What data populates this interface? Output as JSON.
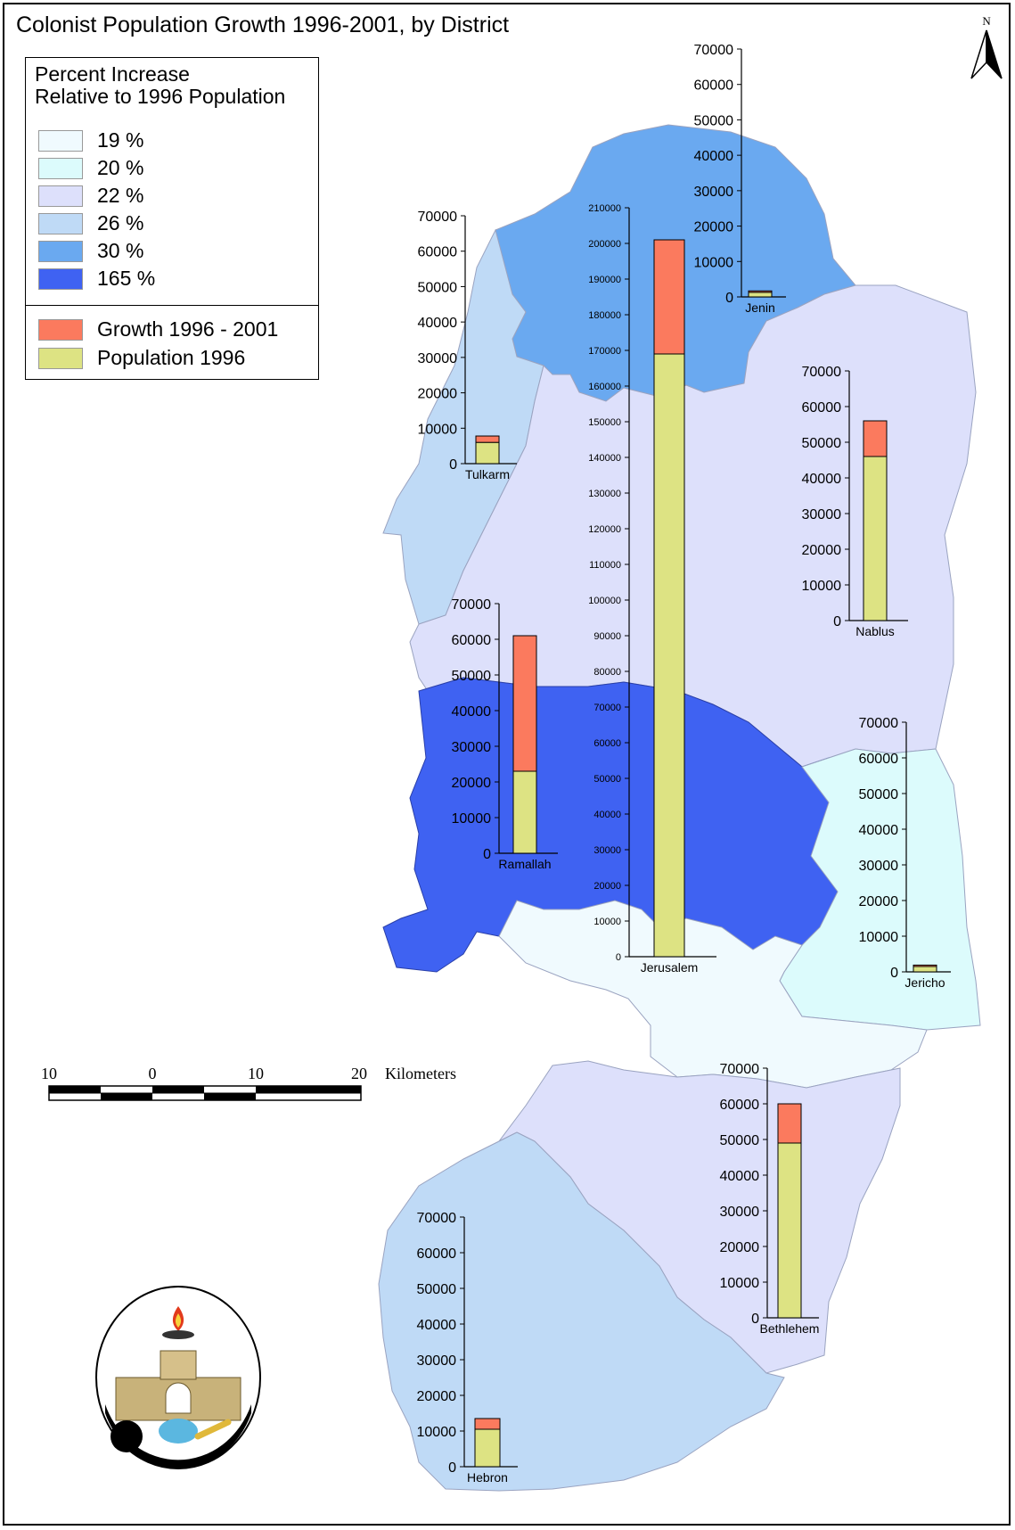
{
  "title": "Colonist Population Growth 1996-2001, by District",
  "legend": {
    "title_line1": "Percent Increase",
    "title_line2": "Relative to 1996 Population",
    "classes": [
      {
        "label": "19 %",
        "color": "#f0fafe"
      },
      {
        "label": "20 %",
        "color": "#dcfbfc"
      },
      {
        "label": "22 %",
        "color": "#dde0fb"
      },
      {
        "label": "26 %",
        "color": "#bfdaf6"
      },
      {
        "label": "30 %",
        "color": "#6aa9f0"
      },
      {
        "label": "165 %",
        "color": "#3f62f2"
      }
    ],
    "series": [
      {
        "label": "Growth 1996 - 2001",
        "color": "#fb7a5e"
      },
      {
        "label": "Population 1996",
        "color": "#dde383"
      }
    ]
  },
  "north_label": "N",
  "scale_bar": {
    "ticks": [
      "10",
      "0",
      "10",
      "20"
    ],
    "unit": "Kilometers"
  },
  "chart_data": [
    {
      "type": "bar",
      "district": "Jenin",
      "ylim": [
        0,
        70000
      ],
      "ticks": [
        "70000",
        "60000",
        "50000",
        "40000",
        "30000",
        "20000",
        "10000",
        "0"
      ],
      "population_1996": 1300,
      "growth_1996_2001": 400
    },
    {
      "type": "bar",
      "district": "Tulkarm",
      "ylim": [
        0,
        70000
      ],
      "ticks": [
        "70000",
        "60000",
        "50000",
        "40000",
        "30000",
        "20000",
        "10000",
        "0"
      ],
      "population_1996": 6000,
      "growth_1996_2001": 1800
    },
    {
      "type": "bar",
      "district": "Jerusalem",
      "ylim": [
        0,
        210000
      ],
      "ticks": [
        "210000",
        "200000",
        "190000",
        "180000",
        "170000",
        "160000",
        "150000",
        "140000",
        "130000",
        "120000",
        "110000",
        "100000",
        "90000",
        "80000",
        "70000",
        "60000",
        "50000",
        "40000",
        "30000",
        "20000",
        "10000",
        "0"
      ],
      "population_1996": 169000,
      "growth_1996_2001": 32000
    },
    {
      "type": "bar",
      "district": "Nablus",
      "ylim": [
        0,
        70000
      ],
      "ticks": [
        "70000",
        "60000",
        "50000",
        "40000",
        "30000",
        "20000",
        "10000",
        "0"
      ],
      "population_1996": 46000,
      "growth_1996_2001": 10000
    },
    {
      "type": "bar",
      "district": "Ramallah",
      "ylim": [
        0,
        70000
      ],
      "ticks": [
        "70000",
        "60000",
        "50000",
        "40000",
        "30000",
        "20000",
        "10000",
        "0"
      ],
      "population_1996": 23000,
      "growth_1996_2001": 38000
    },
    {
      "type": "bar",
      "district": "Jericho",
      "ylim": [
        0,
        70000
      ],
      "ticks": [
        "70000",
        "60000",
        "50000",
        "40000",
        "30000",
        "20000",
        "10000",
        "0"
      ],
      "population_1996": 1500,
      "growth_1996_2001": 400
    },
    {
      "type": "bar",
      "district": "Bethlehem",
      "ylim": [
        0,
        70000
      ],
      "ticks": [
        "70000",
        "60000",
        "50000",
        "40000",
        "30000",
        "20000",
        "10000",
        "0"
      ],
      "population_1996": 49000,
      "growth_1996_2001": 11000
    },
    {
      "type": "bar",
      "district": "Hebron",
      "ylim": [
        0,
        70000
      ],
      "ticks": [
        "70000",
        "60000",
        "50000",
        "40000",
        "30000",
        "20000",
        "10000",
        "0"
      ],
      "population_1996": 10500,
      "growth_1996_2001": 3000
    }
  ]
}
